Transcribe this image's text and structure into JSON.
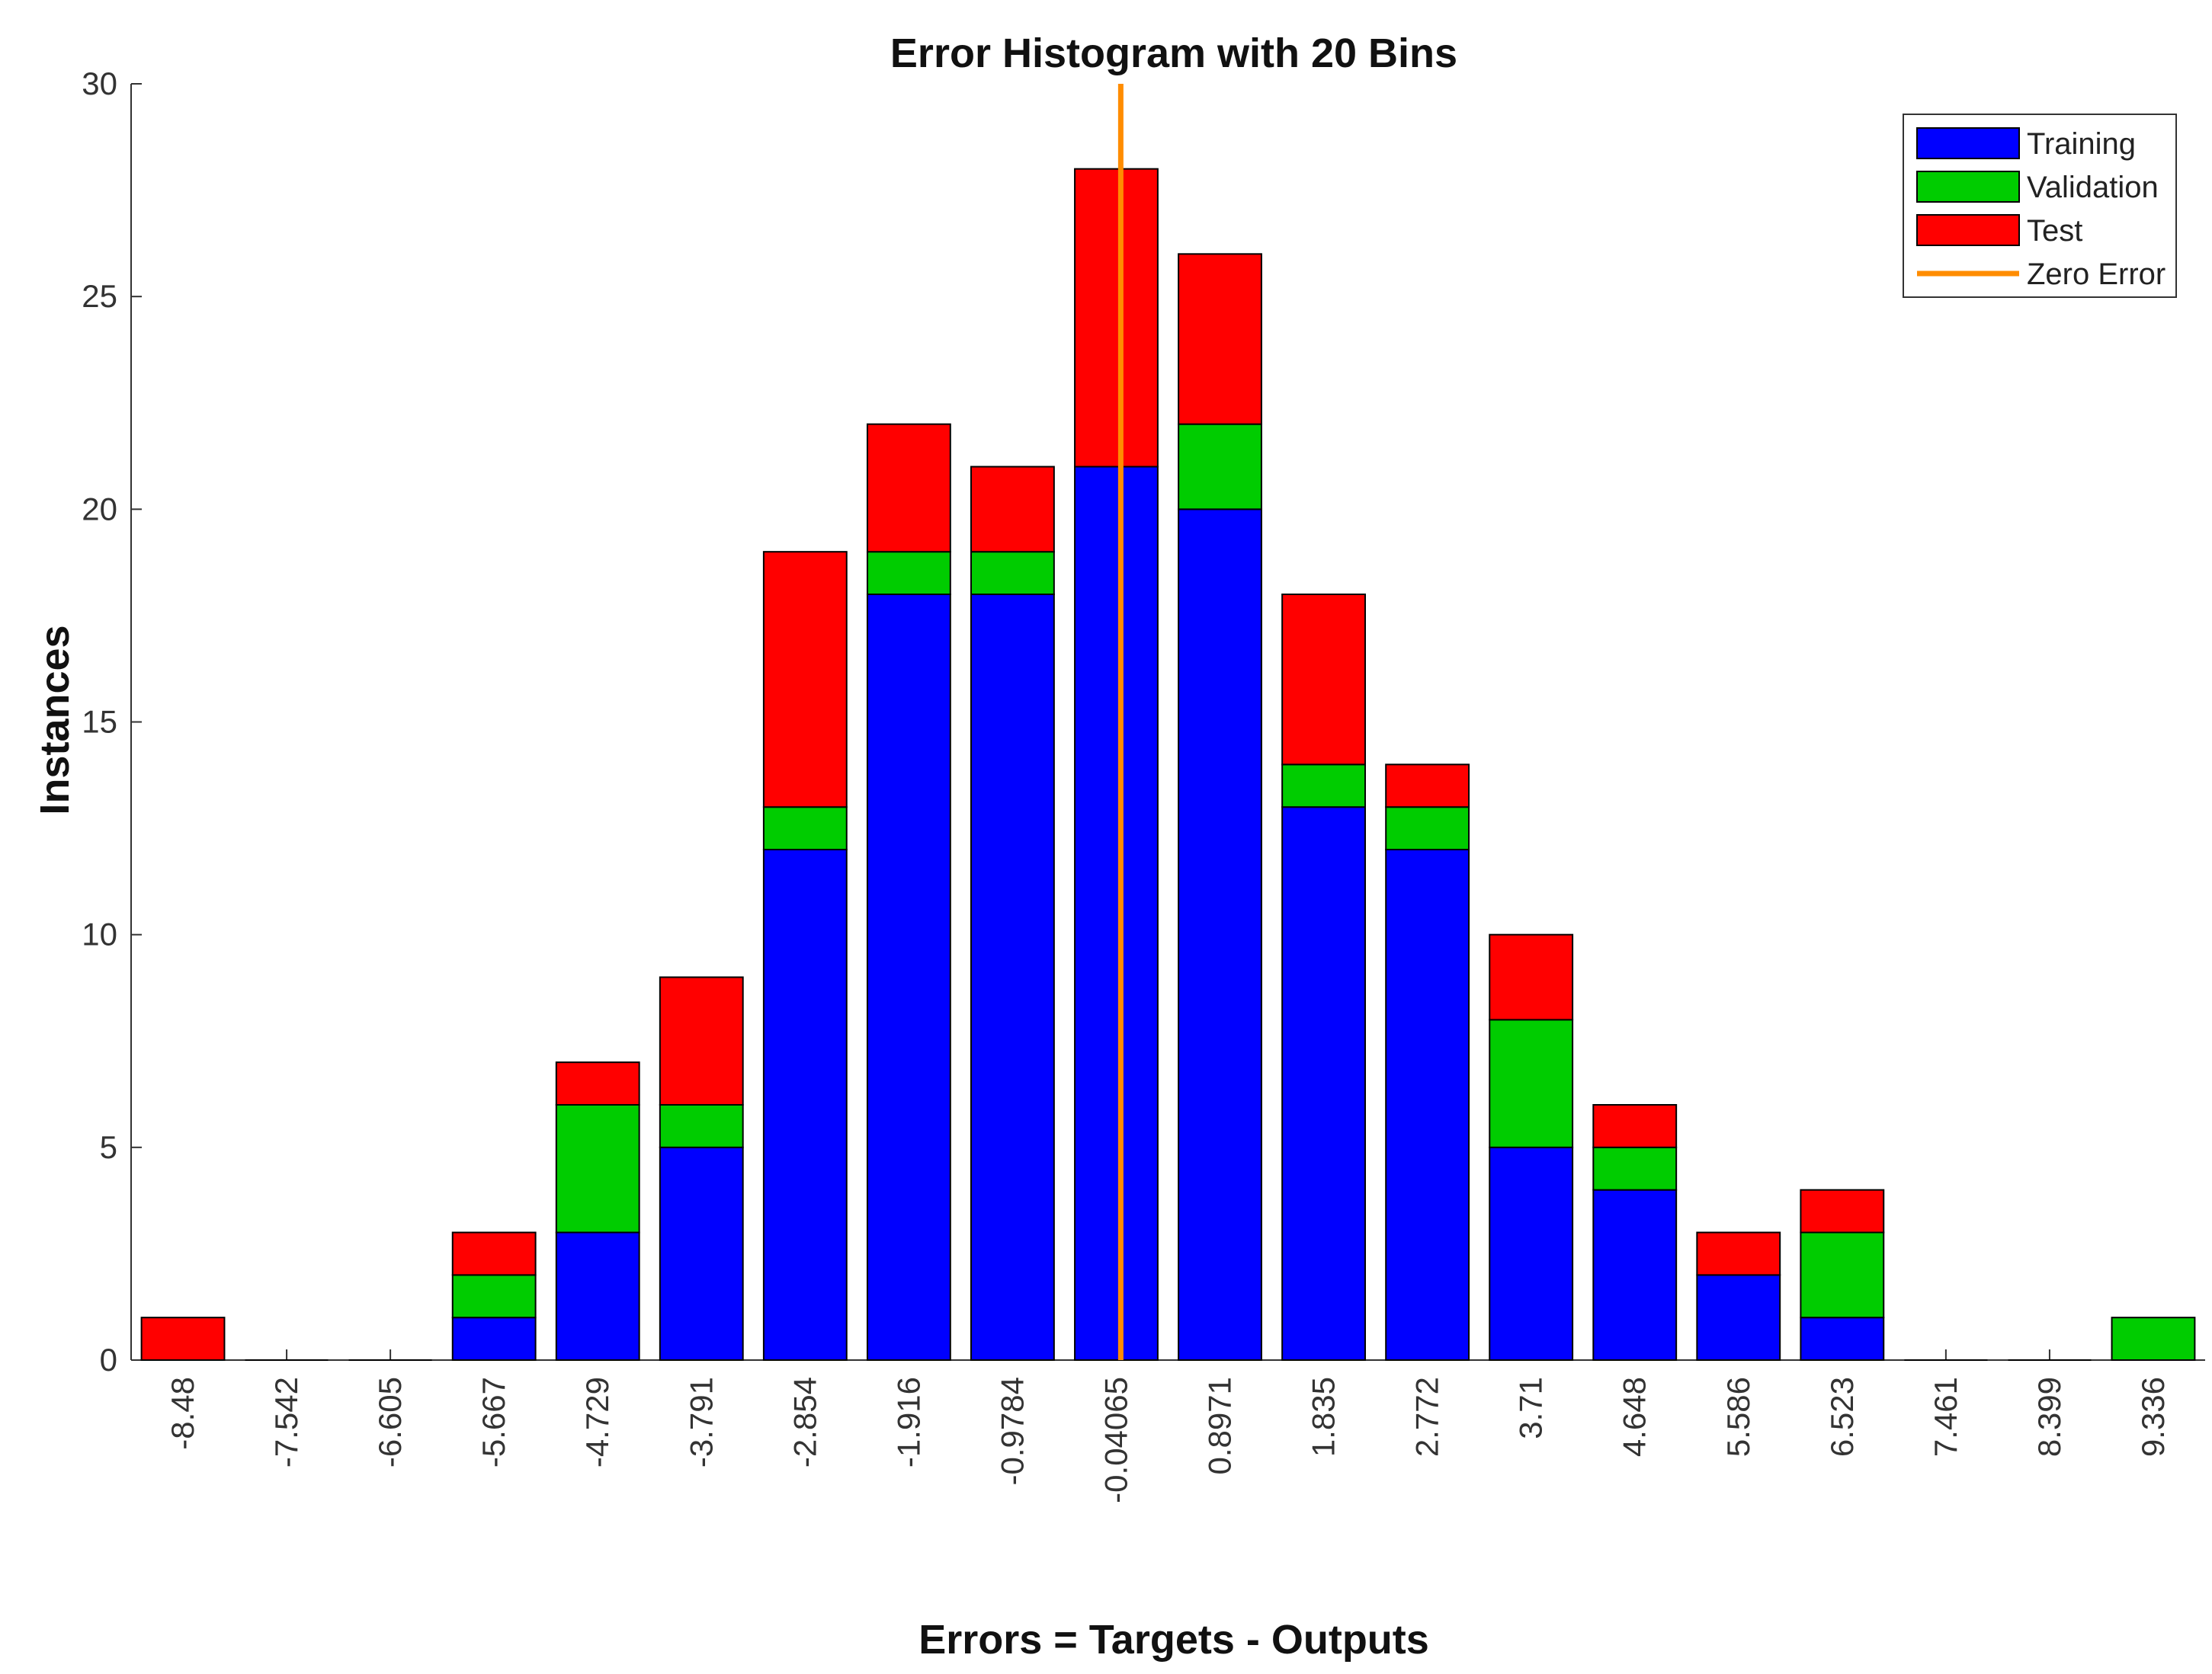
{
  "chart_data": {
    "type": "bar",
    "stacked": true,
    "title": "Error Histogram with 20 Bins",
    "xlabel": "Errors = Targets - Outputs",
    "ylabel": "Instances",
    "ylim": [
      0,
      30
    ],
    "yticks": [
      0,
      5,
      10,
      15,
      20,
      25,
      30
    ],
    "grid": false,
    "legend_position": "top-right",
    "categories": [
      "-8.48",
      "-7.542",
      "-6.605",
      "-5.667",
      "-4.729",
      "-3.791",
      "-2.854",
      "-1.916",
      "-0.9784",
      "-0.04065",
      "0.8971",
      "1.835",
      "2.772",
      "3.71",
      "4.648",
      "5.586",
      "6.523",
      "7.461",
      "8.399",
      "9.336"
    ],
    "series": [
      {
        "name": "Training",
        "color": "#0000ff",
        "values": [
          0,
          0,
          0,
          1,
          3,
          5,
          12,
          18,
          18,
          21,
          20,
          13,
          12,
          5,
          4,
          2,
          1,
          0,
          0,
          0
        ]
      },
      {
        "name": "Validation",
        "color": "#00cc00",
        "values": [
          0,
          0,
          0,
          1,
          3,
          1,
          1,
          1,
          1,
          0,
          2,
          1,
          1,
          3,
          1,
          0,
          2,
          0,
          0,
          1
        ]
      },
      {
        "name": "Test",
        "color": "#ff0000",
        "values": [
          1,
          0,
          0,
          1,
          1,
          3,
          6,
          3,
          2,
          7,
          4,
          4,
          1,
          2,
          1,
          1,
          1,
          0,
          0,
          0
        ]
      }
    ],
    "reference_line": {
      "name": "Zero Error",
      "color": "#ff8c00",
      "x": 0
    }
  }
}
